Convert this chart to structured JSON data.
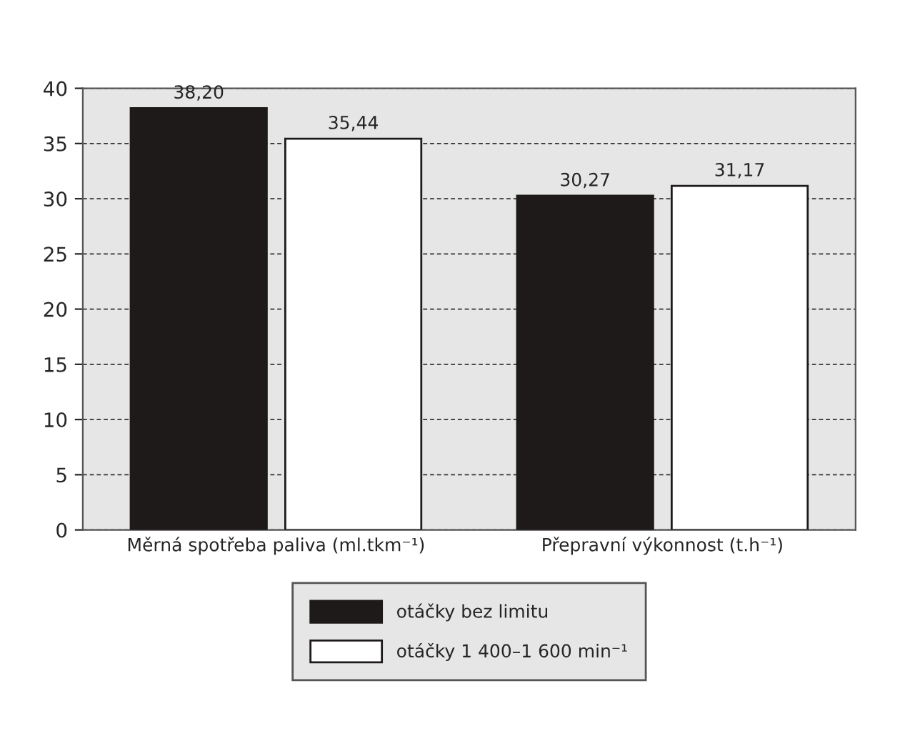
{
  "chart_data": {
    "type": "bar",
    "categories": [
      "Měrná spotřeba paliva (ml.tkm⁻¹)",
      "Přepravní výkonnost (t.h⁻¹)"
    ],
    "series": [
      {
        "name": "otáčky bez limitu",
        "color": "#1e1a1a",
        "values": [
          38.2,
          30.27
        ],
        "value_labels": [
          "38,20",
          "30,27"
        ]
      },
      {
        "name": "otáčky 1 400–1 600 min⁻¹",
        "color": "#ffffff",
        "values": [
          35.44,
          31.17
        ],
        "value_labels": [
          "35,44",
          "31,17"
        ]
      }
    ],
    "ylim": [
      0,
      40
    ],
    "yticks": [
      0,
      5,
      10,
      15,
      20,
      25,
      30,
      35,
      40
    ],
    "grid": "y",
    "legend": "bottom"
  }
}
